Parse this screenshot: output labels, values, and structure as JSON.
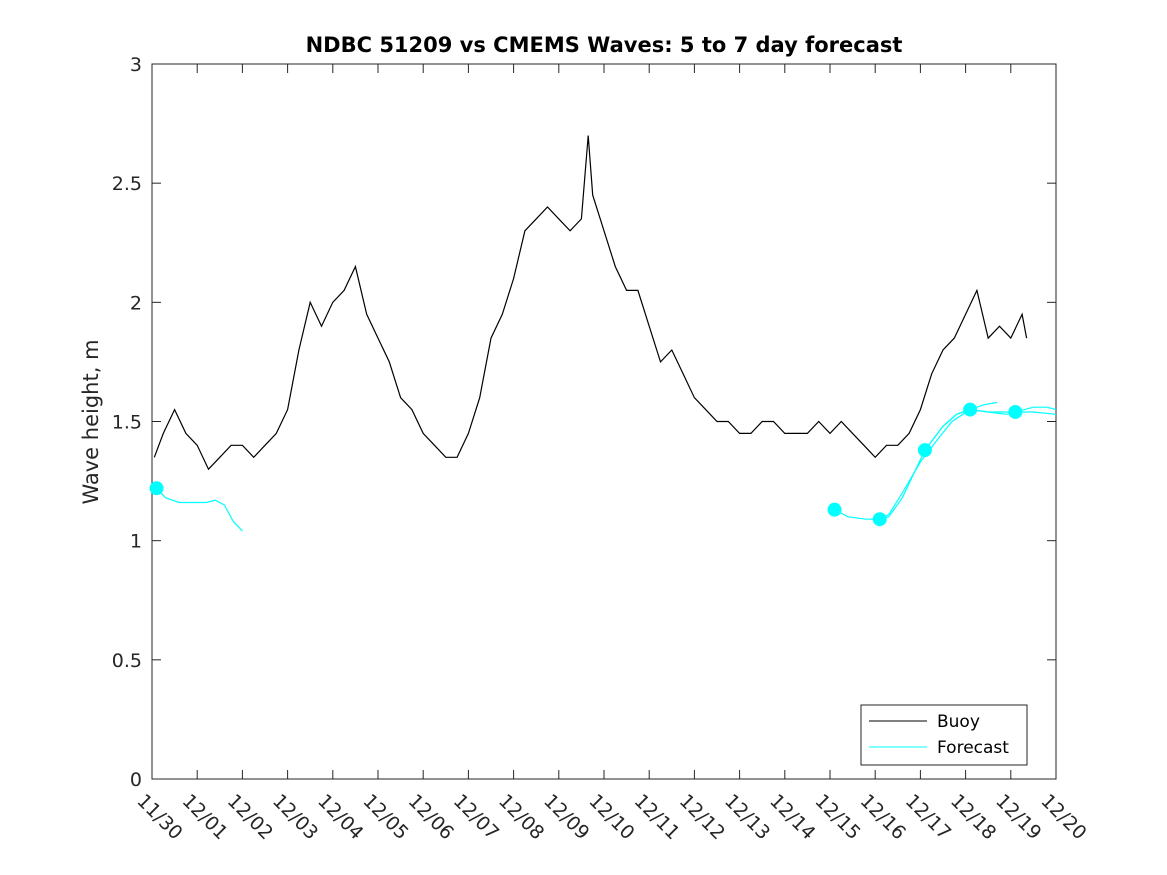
{
  "chart_data": {
    "type": "line",
    "title": "NDBC 51209 vs CMEMS Waves: 5 to 7 day forecast",
    "xlabel": "",
    "ylabel": "Wave height, m",
    "xlim": [
      0,
      20
    ],
    "ylim": [
      0,
      3
    ],
    "x_ticks": [
      0,
      1,
      2,
      3,
      4,
      5,
      6,
      7,
      8,
      9,
      10,
      11,
      12,
      13,
      14,
      15,
      16,
      17,
      18,
      19,
      20
    ],
    "x_tick_labels": [
      "11/30",
      "12/01",
      "12/02",
      "12/03",
      "12/04",
      "12/05",
      "12/06",
      "12/07",
      "12/08",
      "12/09",
      "12/10",
      "12/11",
      "12/12",
      "12/13",
      "12/14",
      "12/15",
      "12/16",
      "12/17",
      "12/18",
      "12/19",
      "12/20"
    ],
    "y_ticks": [
      0,
      0.5,
      1,
      1.5,
      2,
      2.5,
      3
    ],
    "y_tick_labels": [
      "0",
      "0.5",
      "1",
      "1.5",
      "2",
      "2.5",
      "3"
    ],
    "grid": false,
    "legend": {
      "position": "bottom-right",
      "entries": [
        "Buoy",
        "Forecast"
      ]
    },
    "series": [
      {
        "name": "Buoy",
        "color": "#000000",
        "x": [
          0.05,
          0.25,
          0.5,
          0.75,
          1.0,
          1.25,
          1.5,
          1.75,
          2.0,
          2.25,
          2.5,
          2.75,
          3.0,
          3.25,
          3.5,
          3.75,
          4.0,
          4.25,
          4.5,
          4.75,
          5.0,
          5.25,
          5.5,
          5.75,
          6.0,
          6.25,
          6.5,
          6.75,
          7.0,
          7.25,
          7.5,
          7.75,
          8.0,
          8.25,
          8.5,
          8.75,
          9.0,
          9.25,
          9.5,
          9.65,
          9.75,
          10.0,
          10.25,
          10.5,
          10.75,
          11.0,
          11.25,
          11.5,
          11.75,
          12.0,
          12.25,
          12.5,
          12.75,
          13.0,
          13.25,
          13.5,
          13.75,
          14.0,
          14.25,
          14.5,
          14.75,
          15.0,
          15.25,
          15.5,
          15.75,
          16.0,
          16.25,
          16.5,
          16.75,
          17.0,
          17.25,
          17.5,
          17.75,
          18.0,
          18.25,
          18.5,
          18.75,
          19.0,
          19.25,
          19.35
        ],
        "y": [
          1.35,
          1.45,
          1.55,
          1.45,
          1.4,
          1.3,
          1.35,
          1.4,
          1.4,
          1.35,
          1.4,
          1.45,
          1.55,
          1.8,
          2.0,
          1.9,
          2.0,
          2.05,
          2.15,
          1.95,
          1.85,
          1.75,
          1.6,
          1.55,
          1.45,
          1.4,
          1.35,
          1.35,
          1.45,
          1.6,
          1.85,
          1.95,
          2.1,
          2.3,
          2.35,
          2.4,
          2.35,
          2.3,
          2.35,
          2.7,
          2.45,
          2.3,
          2.15,
          2.05,
          2.05,
          1.9,
          1.75,
          1.8,
          1.7,
          1.6,
          1.55,
          1.5,
          1.5,
          1.45,
          1.45,
          1.5,
          1.5,
          1.45,
          1.45,
          1.45,
          1.5,
          1.45,
          1.5,
          1.45,
          1.4,
          1.35,
          1.4,
          1.4,
          1.45,
          1.55,
          1.7,
          1.8,
          1.85,
          1.95,
          2.05,
          1.85,
          1.9,
          1.85,
          1.95,
          1.85
        ]
      },
      {
        "name": "Forecast",
        "color": "#00ffff",
        "segments": [
          {
            "x": [
              0.1,
              0.3,
              0.6,
              0.9,
              1.2,
              1.4,
              1.6,
              1.8,
              2.0
            ],
            "y": [
              1.22,
              1.18,
              1.16,
              1.16,
              1.16,
              1.17,
              1.15,
              1.08,
              1.04
            ]
          },
          {
            "x": [
              15.1,
              15.4,
              15.8,
              16.1,
              16.3,
              16.6,
              17.0,
              17.4,
              17.7,
              18.1,
              18.4,
              18.7
            ],
            "y": [
              1.13,
              1.1,
              1.09,
              1.09,
              1.11,
              1.2,
              1.33,
              1.43,
              1.5,
              1.55,
              1.57,
              1.58
            ]
          },
          {
            "x": [
              16.1,
              16.3,
              16.6,
              17.1,
              17.5,
              17.8,
              18.1,
              18.5,
              18.8,
              19.1,
              19.5,
              19.8,
              20.0
            ],
            "y": [
              1.09,
              1.1,
              1.18,
              1.38,
              1.48,
              1.53,
              1.55,
              1.54,
              1.54,
              1.54,
              1.56,
              1.56,
              1.55
            ]
          },
          {
            "x": [
              17.1,
              17.5,
              17.8,
              18.1,
              18.5,
              18.9,
              19.1,
              19.5,
              20.0
            ],
            "y": [
              1.38,
              1.48,
              1.53,
              1.55,
              1.54,
              1.53,
              1.54,
              1.54,
              1.53
            ]
          }
        ],
        "markers": [
          {
            "x": 0.1,
            "y": 1.22
          },
          {
            "x": 15.1,
            "y": 1.13
          },
          {
            "x": 16.1,
            "y": 1.09
          },
          {
            "x": 17.1,
            "y": 1.38
          },
          {
            "x": 18.1,
            "y": 1.55
          },
          {
            "x": 19.1,
            "y": 1.54
          }
        ]
      }
    ]
  }
}
